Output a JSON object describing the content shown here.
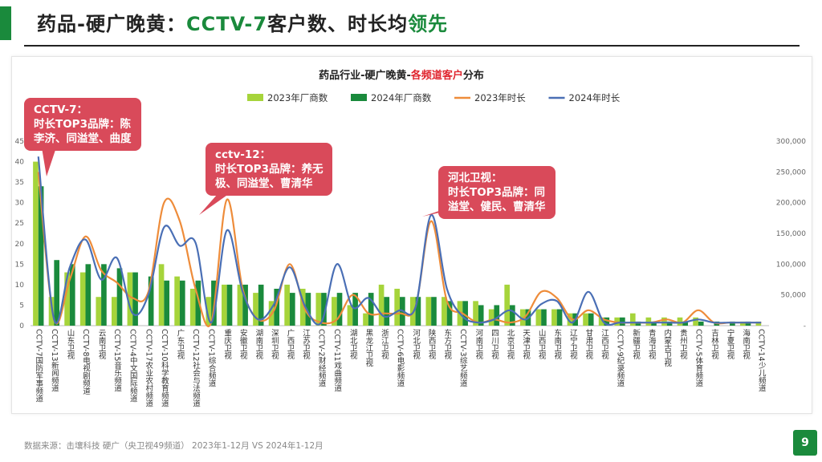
{
  "header": {
    "title_part1": "药品-硬广晚黄：",
    "title_part2": "CCTV-7",
    "title_part3": "客户数、时长均",
    "title_part4": "领先"
  },
  "chart_data": {
    "type": "bar",
    "title_prefix": "药品行业-硬广晚黄-",
    "title_highlight": "各频道客户",
    "title_suffix": "分布",
    "categories": [
      "CCTV-7国防军事频道",
      "CCTV-13新闻频道",
      "山东卫视",
      "CCTV-8电视剧频道",
      "云南卫视",
      "CCTV-15音乐频道",
      "CCTV-4中文国际频道",
      "CCTV-17农业农村频道",
      "CCTV-10科学教育频道",
      "广东卫视",
      "CCTV-12社会与法频道",
      "CCTV-1综合频道",
      "重庆卫视",
      "安徽卫视",
      "湖南卫视",
      "深圳卫视",
      "广西卫视",
      "江苏卫视",
      "CCTV-2财经频道",
      "CCTV-11戏曲频道",
      "湖北卫视",
      "黑龙江卫视",
      "浙江卫视",
      "CCTV-6电影频道",
      "河北卫视",
      "陕西卫视",
      "东方卫视",
      "CCTV-3综艺频道",
      "河南卫视",
      "四川卫视",
      "北京卫视",
      "天津卫视",
      "山西卫视",
      "东南卫视",
      "辽宁卫视",
      "甘肃卫视",
      "江西卫视",
      "CCTV-9纪录频道",
      "新疆卫视",
      "青海卫视",
      "内蒙古卫视",
      "贵州卫视",
      "CCTV-5体育频道",
      "吉林卫视",
      "宁夏卫视",
      "海南卫视",
      "CCTV-14少儿频道"
    ],
    "series": [
      {
        "name": "2023年厂商数",
        "kind": "bar",
        "axis": "left",
        "color": "#a6d43b",
        "values": [
          40,
          7,
          13,
          13,
          7,
          7,
          13,
          0,
          15,
          12,
          9,
          7,
          10,
          10,
          8,
          6,
          10,
          9,
          8,
          7,
          5,
          3,
          10,
          9,
          7,
          7,
          7,
          6,
          6,
          4,
          10,
          4,
          4,
          4,
          3,
          3,
          2,
          2,
          3,
          2,
          2,
          2,
          2,
          0,
          0,
          1,
          1
        ]
      },
      {
        "name": "2024年厂商数",
        "kind": "bar",
        "axis": "left",
        "color": "#1a8a3c",
        "values": [
          34,
          16,
          15,
          15,
          15,
          14,
          13,
          12,
          11,
          11,
          11,
          11,
          10,
          10,
          10,
          9,
          8,
          8,
          8,
          8,
          8,
          8,
          7,
          7,
          7,
          7,
          6,
          6,
          5,
          5,
          5,
          4,
          4,
          4,
          3,
          3,
          2,
          2,
          1,
          1,
          1,
          1,
          1,
          1,
          1,
          1,
          0
        ]
      },
      {
        "name": "2023年时长",
        "kind": "line",
        "axis": "right",
        "color": "#ee8c3a",
        "values": [
          250000,
          10000,
          75000,
          145000,
          90000,
          70000,
          45000,
          55000,
          200000,
          170000,
          60000,
          5000,
          205000,
          60000,
          10000,
          25000,
          100000,
          25000,
          5000,
          10000,
          50000,
          20000,
          20000,
          20000,
          30000,
          170000,
          40000,
          20000,
          5000,
          10000,
          5000,
          15000,
          55000,
          45000,
          10000,
          25000,
          10000,
          5000,
          5000,
          5000,
          10000,
          5000,
          25000,
          5000,
          5000,
          5000,
          5000
        ]
      },
      {
        "name": "2024年时长",
        "kind": "line",
        "axis": "right",
        "color": "#4a6fb5",
        "values": [
          275000,
          10000,
          95000,
          140000,
          75000,
          110000,
          20000,
          50000,
          160000,
          130000,
          135000,
          5000,
          155000,
          55000,
          10000,
          35000,
          95000,
          30000,
          5000,
          100000,
          30000,
          45000,
          15000,
          25000,
          30000,
          180000,
          60000,
          15000,
          5000,
          10000,
          25000,
          10000,
          35000,
          40000,
          5000,
          55000,
          5000,
          5000,
          5000,
          5000,
          5000,
          5000,
          10000,
          5000,
          5000,
          5000,
          5000
        ]
      }
    ],
    "y_left": {
      "min": 0,
      "max": 45,
      "ticks": [
        0,
        5,
        10,
        15,
        20,
        25,
        30,
        35,
        40,
        45
      ]
    },
    "y_right": {
      "min": 0,
      "max": 300000,
      "ticks": [
        0,
        50000,
        100000,
        150000,
        200000,
        250000,
        300000
      ],
      "tick_labels": [
        "-",
        "50,000",
        "100,000",
        "150,000",
        "200,000",
        "250,000",
        "300,000"
      ]
    },
    "legend_position": "top-center",
    "grid": false,
    "annotations": [
      {
        "lines": [
          "CCTV-7：",
          "时长TOP3品牌：陈",
          "李济、同溢堂、曲度"
        ]
      },
      {
        "lines": [
          "cctv-12：",
          "时长TOP3品牌：养无",
          "极、同溢堂、曹清华"
        ]
      },
      {
        "lines": [
          "河北卫视：",
          "时长TOP3品牌：同",
          "溢堂、健民、曹清华"
        ]
      }
    ]
  },
  "footer": {
    "source": "数据来源：击壤科技 硬广（央卫视49频道） 2023年1-12月 VS 2024年1-12月",
    "page_number": "9"
  },
  "colors": {
    "accent": "#1a8a3c",
    "highlight": "#e0262f",
    "callout": "#d94a5a"
  }
}
